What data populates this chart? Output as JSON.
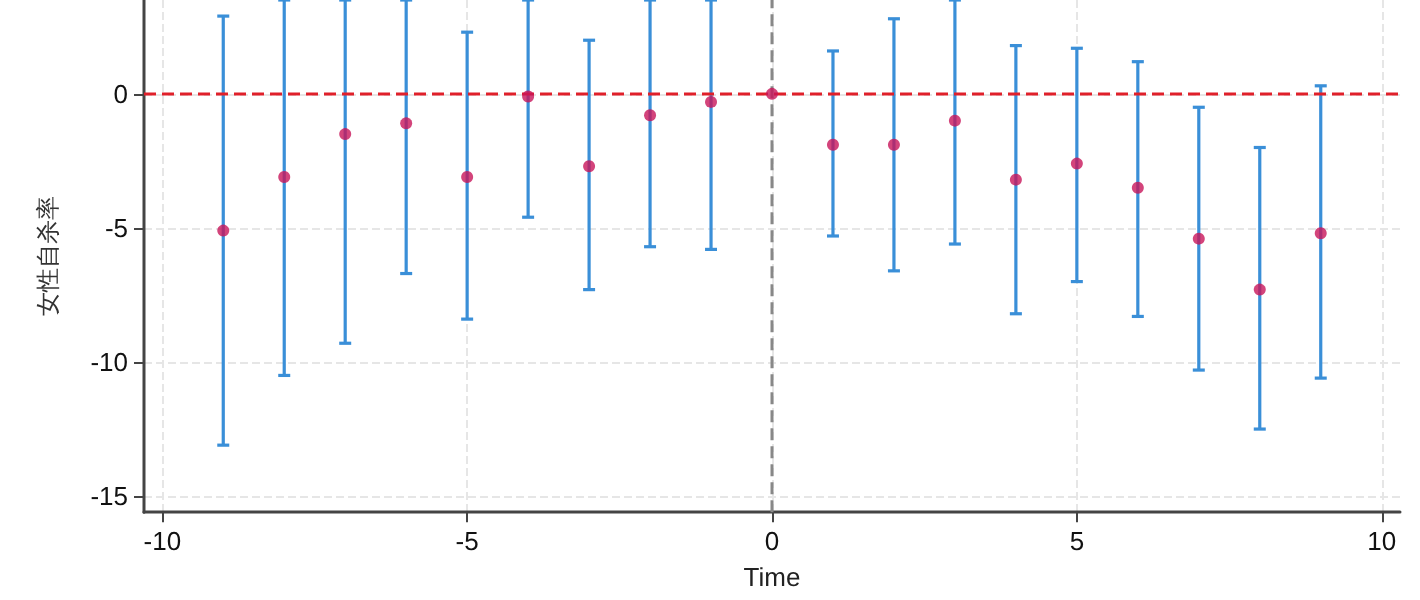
{
  "chart_data": {
    "type": "scatter",
    "xlabel": "Time",
    "ylabel": "女性自杀率",
    "x": [
      -9,
      -8,
      -7,
      -6,
      -5,
      -4,
      -3,
      -2,
      -1,
      0,
      1,
      2,
      3,
      4,
      5,
      6,
      7,
      8,
      9
    ],
    "series": [
      {
        "color": "#c8155a",
        "values": [
          -5.1,
          -3.1,
          -1.5,
          -1.1,
          -3.1,
          -0.1,
          -2.7,
          -0.8,
          -0.3,
          0,
          -1.9,
          -1.9,
          -1.0,
          -3.2,
          -2.6,
          -3.5,
          -5.4,
          -7.3,
          -5.2
        ],
        "errors": [
          [
            -13.1,
            2.9
          ],
          [
            -10.5,
            3.5
          ],
          [
            -9.3,
            3.5
          ],
          [
            -6.7,
            3.5
          ],
          [
            -8.4,
            2.3
          ],
          [
            -4.6,
            3.5
          ],
          [
            -7.3,
            2.0
          ],
          [
            -5.7,
            3.5
          ],
          [
            -5.8,
            3.5
          ],
          null,
          [
            -5.3,
            1.6
          ],
          [
            -6.6,
            2.8
          ],
          [
            -5.6,
            3.5
          ],
          [
            -8.2,
            1.8
          ],
          [
            -7.0,
            1.7
          ],
          [
            -8.3,
            1.2
          ],
          [
            -10.3,
            -0.5
          ],
          [
            -12.5,
            -2.0
          ],
          [
            -10.6,
            0.3
          ]
        ]
      }
    ],
    "xlim": [
      -10.3,
      10.3
    ],
    "xticks": [
      -10,
      -5,
      0,
      5,
      10
    ],
    "ylim": [
      -15.6,
      3.5
    ],
    "yticks": [
      -15,
      -10,
      -5,
      0
    ],
    "ref_lines": [
      {
        "axis": "y",
        "value": 0,
        "color": "#e0202a",
        "line_style": "dashed"
      },
      {
        "axis": "x",
        "value": 0,
        "color": "#888888",
        "line_style": "dashed"
      }
    ],
    "grid": true,
    "marker": "circle"
  }
}
